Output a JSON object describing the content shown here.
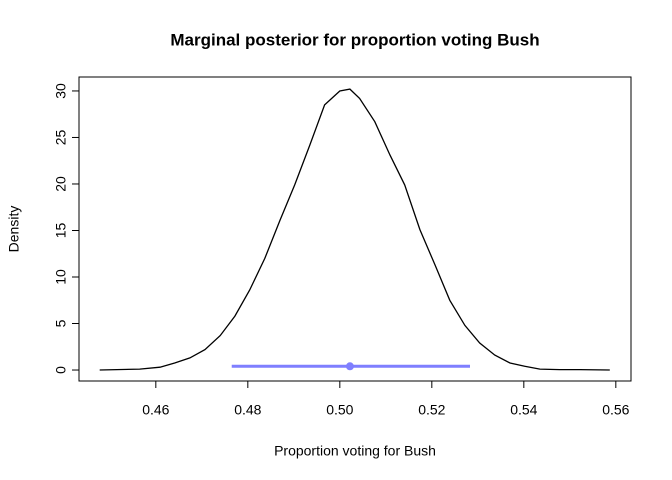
{
  "chart_data": {
    "type": "line",
    "title": "Marginal posterior for proportion voting Bush",
    "x_label": "Proportion voting for Bush",
    "y_label": "Density",
    "x": [
      0.4478,
      0.4565,
      0.4609,
      0.4641,
      0.4674,
      0.4707,
      0.474,
      0.4772,
      0.4804,
      0.4837,
      0.487,
      0.4902,
      0.4935,
      0.4967,
      0.5,
      0.5022,
      0.5043,
      0.5076,
      0.5109,
      0.5141,
      0.5174,
      0.5207,
      0.5239,
      0.5272,
      0.5304,
      0.5337,
      0.537,
      0.5402,
      0.5435,
      0.5478,
      0.5522,
      0.5587
    ],
    "values": [
      0,
      0.1,
      0.3,
      0.75,
      1.3,
      2.2,
      3.7,
      5.8,
      8.6,
      12,
      16.1,
      19.9,
      24.2,
      28.5,
      30,
      30.2,
      29.2,
      26.7,
      23.1,
      19.9,
      15.1,
      11.3,
      7.5,
      4.8,
      2.9,
      1.6,
      0.75,
      0.4,
      0.1,
      0.05,
      0.05,
      0
    ],
    "color": "#000000",
    "interval": {
      "lower": 0.4765,
      "upper": 0.5283,
      "point": 0.5022,
      "y": 0.4,
      "color": "#7f7fff"
    },
    "xlim": [
      0.4433,
      0.5633
    ],
    "ylim": [
      -1.18,
      31.5
    ],
    "xticks": [
      0.46,
      0.48,
      {
        "value": 0.5,
        "label": "0.50"
      },
      0.52,
      0.54,
      0.56
    ],
    "yticks": [
      0,
      5,
      10,
      15,
      20,
      25,
      30
    ]
  }
}
